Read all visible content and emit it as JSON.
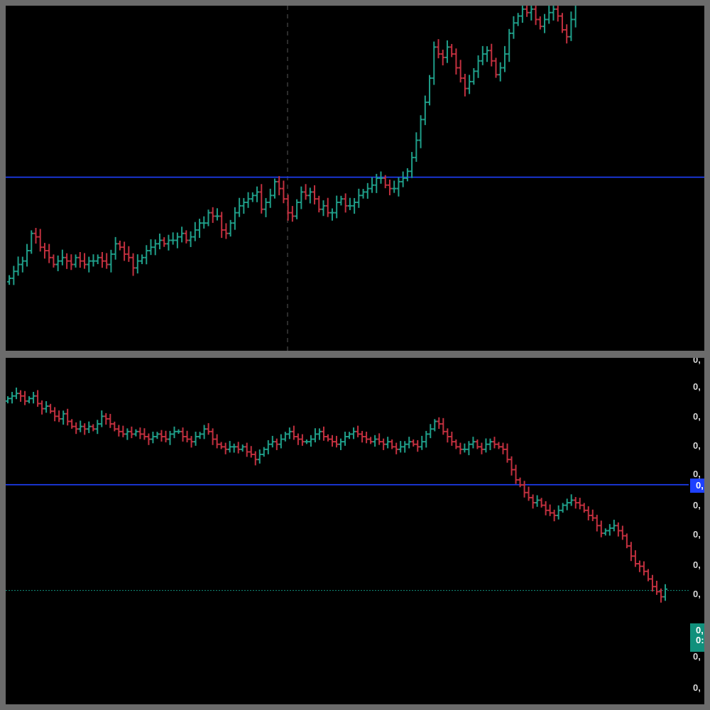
{
  "colors": {
    "background": "#000000",
    "frame": "#6b6b6b",
    "up": "#1f9e89",
    "down": "#c2303f",
    "reference_line": "#1e40ff",
    "last_price_line": "#11907c",
    "crosshair": "#3a3a3a"
  },
  "chart_data": [
    {
      "type": "ohlc",
      "title": "",
      "grid": false,
      "crosshair": true,
      "reference_line_y": 50.3,
      "ylim": [
        0,
        100
      ],
      "up_color": "#1f9e89",
      "down_color": "#c2303f",
      "series": [
        {
          "name": "",
          "close": [
            21,
            23,
            25,
            26,
            29,
            34,
            33,
            30,
            29,
            27,
            25,
            26,
            27,
            26,
            25,
            27,
            26,
            25,
            26,
            26,
            27,
            26,
            25,
            28,
            31,
            30,
            28,
            27,
            24,
            26,
            27,
            29,
            30,
            31,
            32,
            31,
            32,
            32,
            33,
            34,
            32,
            33,
            35,
            37,
            37,
            40,
            39,
            39,
            35,
            34,
            37,
            40,
            42,
            43,
            44,
            45,
            46,
            41,
            43,
            45,
            49,
            47,
            44,
            40,
            39,
            43,
            46,
            45,
            46,
            44,
            41,
            42,
            40,
            40,
            43,
            44,
            42,
            42,
            43,
            45,
            46,
            47,
            48,
            50,
            50,
            48,
            47,
            47,
            49,
            50,
            52,
            56,
            61,
            67,
            72,
            79,
            88,
            86,
            85,
            88,
            86,
            82,
            79,
            76,
            78,
            81,
            84,
            86,
            87,
            84,
            80,
            82,
            86,
            92,
            95,
            97,
            99,
            98,
            99,
            96,
            94,
            96,
            98,
            99,
            97,
            93,
            91,
            96,
            102,
            104
          ]
        }
      ]
    },
    {
      "type": "ohlc",
      "title": "",
      "grid": false,
      "crosshair": false,
      "reference_line_y": 50.1,
      "last_price_y": 8.5,
      "ylim": [
        0,
        100
      ],
      "up_color": "#1f9e89",
      "down_color": "#c2303f",
      "y_axis_labels": [
        "0,",
        "0,",
        "0,",
        "0,",
        "0,",
        "0,",
        "0,",
        "0,",
        "0,",
        "0,",
        "0,",
        "0,"
      ],
      "reference_badge": "0,",
      "last_price_badge": [
        "0,",
        "0:"
      ],
      "series": [
        {
          "name": "",
          "close": [
            84,
            85,
            86,
            85,
            83,
            84,
            85,
            82,
            80,
            81,
            79,
            77,
            76,
            78,
            75,
            73,
            72,
            73,
            72,
            73,
            72,
            74,
            77,
            76,
            74,
            72,
            71,
            70,
            71,
            70,
            71,
            70,
            69,
            68,
            69,
            70,
            69,
            68,
            70,
            71,
            71,
            69,
            68,
            67,
            69,
            70,
            72,
            71,
            68,
            66,
            65,
            64,
            65,
            65,
            64,
            65,
            63,
            62,
            60,
            62,
            64,
            66,
            67,
            66,
            68,
            70,
            71,
            69,
            68,
            67,
            67,
            68,
            70,
            71,
            69,
            68,
            67,
            66,
            67,
            69,
            70,
            71,
            70,
            69,
            68,
            67,
            68,
            67,
            66,
            67,
            65,
            64,
            65,
            66,
            67,
            66,
            65,
            67,
            70,
            72,
            75,
            74,
            71,
            69,
            67,
            65,
            64,
            64,
            66,
            67,
            65,
            64,
            66,
            67,
            66,
            65,
            64,
            60,
            56,
            52,
            50,
            47,
            45,
            43,
            44,
            42,
            40,
            39,
            38,
            40,
            42,
            43,
            44,
            43,
            42,
            40,
            38,
            37,
            34,
            31,
            32,
            33,
            34,
            32,
            30,
            26,
            22,
            19,
            18,
            16,
            13,
            10,
            8,
            6,
            9
          ]
        }
      ]
    }
  ]
}
